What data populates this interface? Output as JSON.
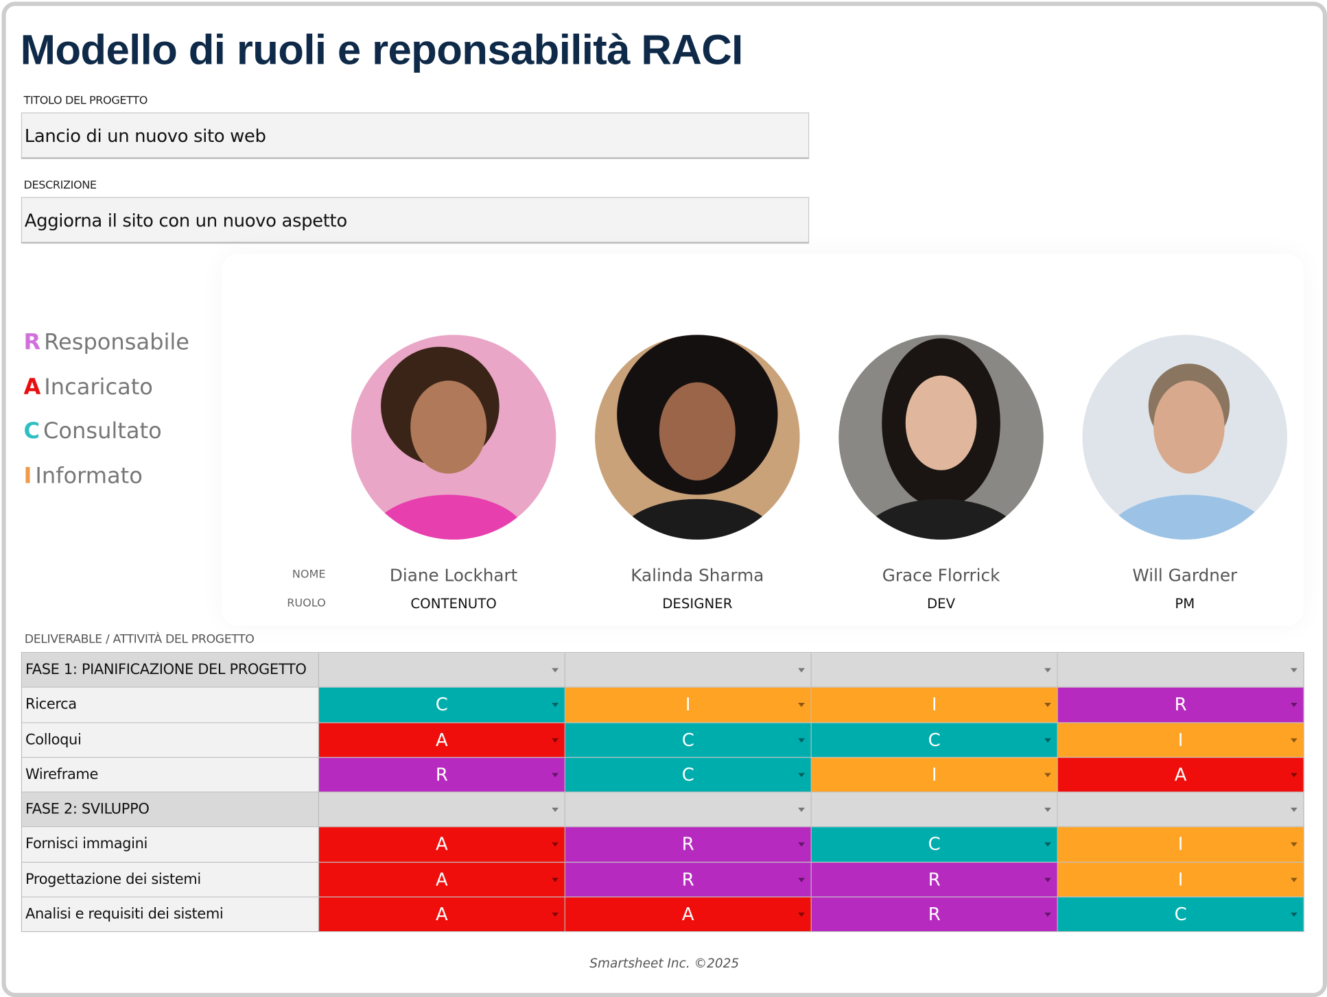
{
  "title": "Modello di ruoli e reponsabilità RACI",
  "project": {
    "label": "TITOLO DEL PROGETTO",
    "value": "Lancio di un nuovo sito web"
  },
  "description": {
    "label": "DESCRIZIONE",
    "value": "Aggiorna il sito con un nuovo aspetto"
  },
  "legend": [
    {
      "letter": "R",
      "text": "Responsabile",
      "color": "#d070dc"
    },
    {
      "letter": "A",
      "text": "Incaricato",
      "color": "#e8100f"
    },
    {
      "letter": "C",
      "text": "Consultato",
      "color": "#2ebfc2"
    },
    {
      "letter": "I",
      "text": "Informato",
      "color": "#ee9a4a"
    }
  ],
  "cell_colors": {
    "R": "#b72abf",
    "A": "#ef0e0c",
    "C": "#00adad",
    "I": "#ffa325"
  },
  "name_label": "NOME",
  "role_label": "RUOLO",
  "people": [
    {
      "name": "Diane Lockhart",
      "role": "CONTENUTO"
    },
    {
      "name": "Kalinda Sharma",
      "role": "DESIGNER"
    },
    {
      "name": "Grace Florrick",
      "role": "DEV"
    },
    {
      "name": "Will Gardner",
      "role": "PM"
    }
  ],
  "table": {
    "header": "DELIVERABLE / ATTIVITÀ DEL PROGETTO",
    "rows": [
      {
        "phase": "FASE 1: PIANIFICAZIONE DEL PROGETTO"
      },
      {
        "task": "Ricerca",
        "cells": [
          "C",
          "I",
          "I",
          "R"
        ]
      },
      {
        "task": "Colloqui",
        "cells": [
          "A",
          "C",
          "C",
          "I"
        ]
      },
      {
        "task": "Wireframe",
        "cells": [
          "R",
          "C",
          "I",
          "A"
        ]
      },
      {
        "phase": "FASE 2: SVILUPPO"
      },
      {
        "task": "Fornisci immagini",
        "cells": [
          "A",
          "R",
          "C",
          "I"
        ]
      },
      {
        "task": "Progettazione dei sistemi",
        "cells": [
          "A",
          "R",
          "R",
          "I"
        ]
      },
      {
        "task": "Analisi e requisiti dei sistemi",
        "cells": [
          "A",
          "A",
          "R",
          "C"
        ]
      }
    ]
  },
  "footer": "Smartsheet Inc. ©2025"
}
